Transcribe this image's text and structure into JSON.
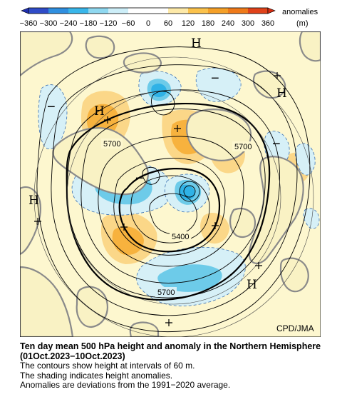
{
  "legend": {
    "ticks": [
      "−360",
      "−300",
      "−240",
      "−180",
      "−120",
      "−60",
      "0",
      "60",
      "120",
      "180",
      "240",
      "300",
      "360"
    ],
    "label": "anomalies",
    "unit": "(m)",
    "colors": [
      "#2f4cc8",
      "#2f8fe0",
      "#39b6ea",
      "#8fd8f0",
      "#cdeef8",
      "#ffffff",
      "#ffffff",
      "#fde9a8",
      "#fbc24c",
      "#f5a028",
      "#ef7a1a",
      "#e0421a"
    ]
  },
  "map": {
    "credit": "CPD/JMA",
    "contour_labels": [
      {
        "id": "5700-west",
        "text": "5700"
      },
      {
        "id": "5700-east",
        "text": "5700"
      },
      {
        "id": "5400",
        "text": "5400"
      },
      {
        "id": "5700-south",
        "text": "5700"
      }
    ],
    "highs": [
      "H",
      "H",
      "H",
      "H",
      "H"
    ],
    "anomaly_signs": [
      "−",
      "−",
      "−",
      "−"
    ]
  },
  "caption": {
    "title": "Ten day mean 500 hPa height and anomaly in the Northern Hemisphere (01Oct.2023−10Oct.2023)",
    "line1": "The contours show height at intervals of 60 m.",
    "line2": "The shading indicates height anomalies.",
    "line3": "Anomalies are deviations from the 1991−2020 average."
  }
}
